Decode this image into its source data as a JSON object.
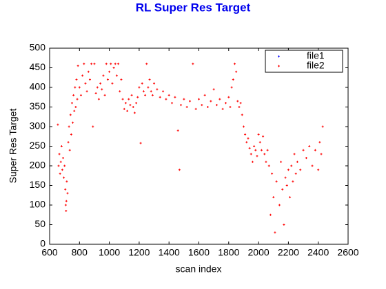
{
  "chart_data": {
    "type": "scatter",
    "title": "RL Super Res Target",
    "x_label": "scan index",
    "y_label": "Super Res Target",
    "xlim": [
      600,
      2600
    ],
    "ylim": [
      0,
      500
    ],
    "xticks": [
      600,
      800,
      1000,
      1200,
      1400,
      1600,
      1800,
      2000,
      2200,
      2400,
      2600
    ],
    "yticks": [
      0,
      50,
      100,
      150,
      200,
      250,
      300,
      350,
      400,
      450,
      500
    ],
    "grid": false,
    "legend": "upper right",
    "series": [
      {
        "name": "file1",
        "color": "#0000ff",
        "x": [],
        "values": []
      },
      {
        "name": "file2",
        "color": "#ff0000",
        "x": [
          655,
          660,
          665,
          670,
          675,
          680,
          685,
          690,
          695,
          700,
          705,
          708,
          710,
          712,
          715,
          720,
          725,
          730,
          735,
          740,
          745,
          750,
          755,
          760,
          765,
          770,
          775,
          780,
          785,
          790,
          800,
          810,
          820,
          830,
          840,
          850,
          860,
          870,
          880,
          890,
          900,
          910,
          920,
          930,
          940,
          950,
          960,
          970,
          980,
          990,
          1000,
          1010,
          1020,
          1030,
          1040,
          1050,
          1060,
          1070,
          1080,
          1090,
          1100,
          1110,
          1120,
          1130,
          1140,
          1150,
          1160,
          1170,
          1180,
          1190,
          1200,
          1210,
          1220,
          1230,
          1240,
          1250,
          1260,
          1270,
          1280,
          1290,
          1300,
          1320,
          1340,
          1360,
          1380,
          1400,
          1420,
          1440,
          1460,
          1470,
          1480,
          1500,
          1520,
          1540,
          1560,
          1580,
          1600,
          1620,
          1640,
          1660,
          1680,
          1700,
          1720,
          1740,
          1760,
          1780,
          1800,
          1810,
          1820,
          1830,
          1840,
          1850,
          1860,
          1870,
          1880,
          1890,
          1900,
          1910,
          1920,
          1930,
          1940,
          1950,
          1960,
          1970,
          1980,
          1990,
          2000,
          2010,
          2020,
          2030,
          2040,
          2050,
          2060,
          2070,
          2080,
          2090,
          2100,
          2110,
          2120,
          2140,
          2150,
          2160,
          2170,
          2180,
          2190,
          2200,
          2210,
          2220,
          2230,
          2240,
          2250,
          2260,
          2280,
          2300,
          2320,
          2340,
          2360,
          2380,
          2400,
          2410,
          2420,
          2430
        ],
        "values": [
          305,
          200,
          230,
          180,
          210,
          250,
          190,
          220,
          170,
          200,
          140,
          100,
          85,
          110,
          160,
          130,
          260,
          300,
          240,
          330,
          280,
          360,
          310,
          380,
          340,
          400,
          350,
          420,
          370,
          455,
          400,
          380,
          430,
          460,
          410,
          390,
          440,
          420,
          460,
          300,
          460,
          385,
          400,
          370,
          410,
          395,
          430,
          380,
          460,
          420,
          440,
          460,
          410,
          450,
          460,
          430,
          460,
          390,
          420,
          370,
          345,
          360,
          340,
          370,
          355,
          380,
          350,
          335,
          360,
          375,
          400,
          258,
          410,
          390,
          380,
          460,
          400,
          420,
          390,
          380,
          410,
          395,
          375,
          390,
          370,
          380,
          360,
          375,
          290,
          190,
          355,
          370,
          350,
          365,
          460,
          345,
          370,
          355,
          380,
          350,
          365,
          395,
          355,
          370,
          345,
          360,
          375,
          350,
          400,
          420,
          460,
          440,
          365,
          350,
          360,
          330,
          300,
          280,
          260,
          270,
          245,
          230,
          210,
          250,
          240,
          225,
          280,
          260,
          240,
          275,
          230,
          210,
          240,
          200,
          75,
          180,
          120,
          30,
          160,
          100,
          210,
          140,
          50,
          170,
          150,
          190,
          120,
          200,
          160,
          230,
          180,
          210,
          190,
          240,
          220,
          250,
          200,
          240,
          190,
          260,
          230,
          300
        ]
      }
    ]
  }
}
